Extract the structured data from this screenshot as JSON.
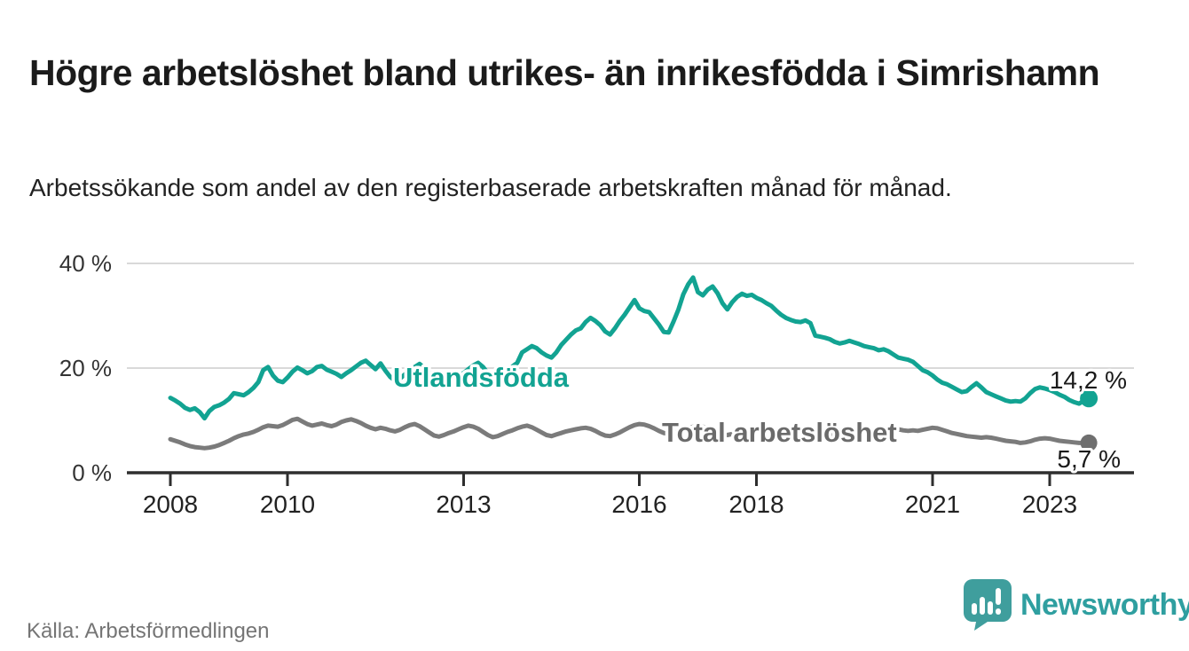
{
  "header": {
    "title": "Högre arbetslöshet bland utrikes- än inrikesfödda i Simrishamn",
    "subtitle": "Arbetssökande som andel av den registerbaserade arbetskraften månad för månad."
  },
  "footer": {
    "source": "Källa: Arbetsförmedlingen",
    "brand": "Newsworthy",
    "brand_icon": "bar-chart-speech-bubble"
  },
  "colors": {
    "accent_teal": "#12a392",
    "line_gray": "#7b7b7b",
    "label_gray": "#6b6b6b",
    "grid_gray": "#d9d9d9",
    "axis_dark": "#2e2e2e",
    "text_dark": "#1a1a1a",
    "muted_gray": "#757575",
    "brand_teal": "#2f9fa0"
  },
  "chart_data": {
    "type": "line",
    "title": "Högre arbetslöshet bland utrikes- än inrikesfödda i Simrishamn",
    "subtitle": "Arbetssökande som andel av den registerbaserade arbetskraften månad för månad.",
    "frequency": "monthly",
    "x_start": "2008-01",
    "x_end": "2023-09",
    "ylim": [
      0,
      40
    ],
    "grid": "horizontal",
    "legend_position": "inline-labels",
    "yticks": [
      {
        "value": 40,
        "label": "40 %"
      },
      {
        "value": 20,
        "label": "20 %"
      },
      {
        "value": 0,
        "label": "0 %"
      }
    ],
    "xticks": [
      {
        "year": 2008,
        "label": "2008"
      },
      {
        "year": 2010,
        "label": "2010"
      },
      {
        "year": 2013,
        "label": "2013"
      },
      {
        "year": 2016,
        "label": "2016"
      },
      {
        "year": 2018,
        "label": "2018"
      },
      {
        "year": 2021,
        "label": "2021"
      },
      {
        "year": 2023,
        "label": "2023"
      }
    ],
    "series": [
      {
        "name": "Utlandsfödda",
        "color": "#12a392",
        "end_label": "14,2 %",
        "end_value": 14.2,
        "values": [
          14.3,
          13.8,
          13.2,
          12.4,
          12.0,
          12.3,
          11.6,
          10.4,
          11.8,
          12.6,
          12.9,
          13.4,
          14.1,
          15.2,
          15.0,
          14.8,
          15.4,
          16.2,
          17.3,
          19.6,
          20.2,
          18.6,
          17.6,
          17.3,
          18.2,
          19.3,
          20.1,
          19.6,
          19.0,
          19.4,
          20.2,
          20.4,
          19.7,
          19.3,
          18.9,
          18.3,
          19.0,
          19.6,
          20.3,
          21.0,
          21.4,
          20.6,
          19.8,
          20.9,
          19.5,
          18.3,
          17.6,
          18.0,
          18.8,
          19.5,
          20.2,
          20.8,
          20.0,
          19.2,
          18.3,
          17.4,
          17.0,
          17.5,
          18.2,
          18.8,
          19.0,
          19.8,
          20.5,
          21.0,
          20.2,
          19.0,
          18.0,
          17.6,
          18.4,
          19.5,
          20.3,
          21.0,
          23.0,
          23.6,
          24.2,
          23.8,
          23.0,
          22.4,
          22.0,
          23.0,
          24.4,
          25.4,
          26.4,
          27.2,
          27.6,
          28.8,
          29.6,
          29.0,
          28.2,
          27.0,
          26.4,
          27.6,
          29.0,
          30.2,
          31.6,
          33.0,
          31.4,
          30.9,
          30.7,
          29.5,
          28.3,
          26.9,
          26.8,
          28.9,
          31.2,
          34.1,
          36.0,
          37.3,
          34.5,
          33.9,
          35.0,
          35.6,
          34.3,
          32.4,
          31.2,
          32.6,
          33.6,
          34.2,
          33.8,
          34.0,
          33.4,
          33.0,
          32.4,
          31.9,
          31.0,
          30.2,
          29.6,
          29.2,
          28.9,
          28.8,
          29.1,
          28.6,
          26.2,
          26.0,
          25.8,
          25.5,
          25.0,
          24.7,
          24.9,
          25.2,
          24.9,
          24.6,
          24.2,
          24.0,
          23.8,
          23.4,
          23.6,
          23.2,
          22.6,
          22.0,
          21.8,
          21.6,
          21.2,
          20.4,
          19.6,
          19.2,
          18.6,
          17.8,
          17.2,
          16.9,
          16.4,
          15.9,
          15.4,
          15.6,
          16.4,
          17.1,
          16.3,
          15.4,
          15.0,
          14.6,
          14.2,
          13.8,
          13.6,
          13.7,
          13.6,
          14.2,
          15.2,
          16.0,
          16.3,
          16.1,
          15.8,
          15.4,
          14.9,
          14.5,
          13.9,
          13.5,
          13.2,
          13.8,
          14.2
        ]
      },
      {
        "name": "Total arbetslöshet",
        "color": "#7b7b7b",
        "end_label": "5,7 %",
        "end_value": 5.7,
        "values": [
          6.4,
          6.1,
          5.8,
          5.4,
          5.1,
          4.9,
          4.8,
          4.7,
          4.8,
          5.0,
          5.3,
          5.7,
          6.1,
          6.6,
          7.0,
          7.3,
          7.5,
          7.8,
          8.2,
          8.7,
          9.0,
          8.9,
          8.8,
          9.1,
          9.6,
          10.1,
          10.3,
          9.8,
          9.3,
          9.0,
          9.2,
          9.4,
          9.1,
          8.9,
          9.2,
          9.7,
          10.0,
          10.2,
          9.9,
          9.5,
          9.0,
          8.6,
          8.3,
          8.6,
          8.4,
          8.1,
          7.9,
          8.2,
          8.7,
          9.1,
          9.3,
          8.9,
          8.3,
          7.7,
          7.1,
          6.9,
          7.2,
          7.6,
          7.9,
          8.3,
          8.7,
          9.0,
          8.8,
          8.4,
          7.8,
          7.2,
          6.8,
          7.0,
          7.4,
          7.8,
          8.1,
          8.5,
          8.8,
          9.0,
          8.7,
          8.2,
          7.7,
          7.2,
          7.0,
          7.3,
          7.6,
          7.9,
          8.1,
          8.3,
          8.5,
          8.6,
          8.4,
          8.0,
          7.5,
          7.1,
          7.0,
          7.3,
          7.7,
          8.2,
          8.7,
          9.1,
          9.3,
          9.2,
          8.9,
          8.5,
          8.0,
          7.6,
          7.4,
          7.6,
          7.9,
          8.2,
          8.5,
          8.8,
          8.9,
          8.8,
          8.5,
          8.1,
          7.7,
          7.3,
          7.2,
          7.4,
          7.7,
          8.0,
          8.2,
          8.4,
          8.5,
          8.4,
          8.1,
          7.7,
          7.3,
          7.0,
          6.8,
          7.0,
          7.3,
          7.6,
          7.8,
          8.0,
          8.1,
          8.0,
          7.8,
          7.5,
          7.2,
          6.9,
          6.8,
          7.0,
          7.2,
          7.5,
          7.7,
          7.9,
          8.0,
          8.1,
          8.3,
          8.6,
          8.5,
          8.3,
          8.1,
          8.0,
          8.1,
          8.0,
          8.2,
          8.4,
          8.6,
          8.5,
          8.2,
          7.9,
          7.6,
          7.4,
          7.2,
          7.0,
          6.9,
          6.8,
          6.7,
          6.8,
          6.7,
          6.5,
          6.3,
          6.1,
          6.0,
          5.9,
          5.7,
          5.8,
          6.0,
          6.3,
          6.5,
          6.6,
          6.5,
          6.3,
          6.1,
          6.0,
          5.9,
          5.8,
          5.7,
          5.7,
          5.7
        ]
      }
    ]
  }
}
